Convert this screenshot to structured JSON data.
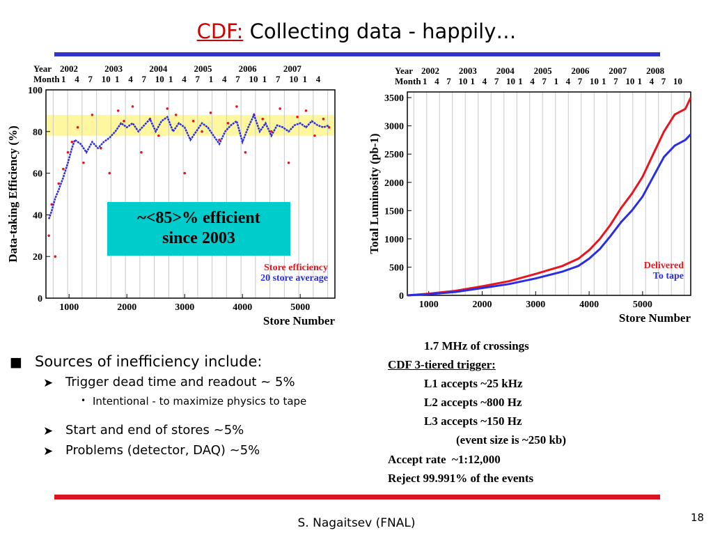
{
  "slide": {
    "title_prefix": "CDF:",
    "title_rest": " Collecting data - happily…",
    "footer": "S. Nagaitsev (FNAL)",
    "page_number": "18",
    "colors": {
      "rule_top": "#2f34c8",
      "rule_bottom": "#d9141e",
      "callout": "#00cccc",
      "title_accent": "#cc0000"
    }
  },
  "callout": {
    "line1": "~<85>% efficient",
    "line2": "since 2003"
  },
  "bullets": {
    "main": "Sources of inefficiency include:",
    "sub1": "Trigger dead time and readout ~ 5%",
    "sub1_detail": "Intentional - to maximize physics to tape",
    "sub2": "Start and end of stores ~5%",
    "sub3": "Problems (detector, DAQ) ~5%"
  },
  "notes": {
    "line1": "1.7 MHz of crossings",
    "line2": "CDF 3-tiered trigger:",
    "line3": "L1 accepts ~25 kHz",
    "line4": "L2 accepts ~800 Hz",
    "line5": "L3 accepts ~150 Hz",
    "line6": "(event size is ~250 kb)",
    "line7": "Accept rate  ~1:12,000",
    "line8": "Reject 99.991% of the events"
  },
  "chart_data": [
    {
      "type": "scatter",
      "xlabel": "Store Number",
      "ylabel": "Data-taking Efficiency (%)",
      "xlim": [
        600,
        5600
      ],
      "ylim": [
        0,
        100
      ],
      "x_ticks": [
        1000,
        2000,
        3000,
        4000,
        5000
      ],
      "y_ticks": [
        0,
        20,
        40,
        60,
        80,
        100
      ],
      "top_row_year_label": "Year",
      "top_row_month_label": "Month",
      "year_labels": [
        "2002",
        "2003",
        "2004",
        "2005",
        "2006",
        "2007"
      ],
      "month_labels": [
        "1",
        "4",
        "7",
        "10",
        "1",
        "4",
        "7",
        "10",
        "1",
        "4",
        "7",
        "1",
        "4",
        "7",
        "10",
        "1",
        "7",
        "10",
        "1",
        "4"
      ],
      "legend": [
        "Store efficiency",
        "20 store average"
      ],
      "band_range": [
        78,
        88
      ],
      "series": [
        {
          "name": "Store efficiency",
          "color": "#e8141e",
          "x": [
            650,
            700,
            760,
            820,
            900,
            980,
            1050,
            1150,
            1250,
            1400,
            1550,
            1700,
            1850,
            1950,
            2100,
            2250,
            2400,
            2550,
            2700,
            2850,
            3000,
            3150,
            3300,
            3450,
            3600,
            3750,
            3900,
            4050,
            4200,
            4350,
            4500,
            4650,
            4800,
            4950,
            5100,
            5250,
            5400,
            5500
          ],
          "y": [
            30,
            45,
            20,
            55,
            62,
            70,
            75,
            82,
            65,
            88,
            72,
            60,
            90,
            85,
            92,
            70,
            86,
            78,
            91,
            88,
            60,
            85,
            80,
            89,
            76,
            84,
            92,
            70,
            88,
            86,
            80,
            91,
            65,
            87,
            90,
            78,
            86,
            82
          ]
        },
        {
          "name": "20 store average",
          "color": "#2a2ee0",
          "x": [
            650,
            700,
            760,
            820,
            900,
            980,
            1050,
            1100,
            1200,
            1300,
            1400,
            1500,
            1600,
            1700,
            1800,
            1900,
            2000,
            2100,
            2200,
            2300,
            2400,
            2500,
            2600,
            2700,
            2800,
            2900,
            3000,
            3100,
            3200,
            3300,
            3400,
            3500,
            3600,
            3700,
            3800,
            3900,
            4000,
            4100,
            4200,
            4300,
            4400,
            4500,
            4600,
            4700,
            4800,
            4900,
            5000,
            5100,
            5200,
            5300,
            5400,
            5500
          ],
          "y": [
            38,
            42,
            48,
            52,
            58,
            65,
            72,
            76,
            74,
            70,
            75,
            72,
            75,
            77,
            80,
            84,
            82,
            84,
            80,
            83,
            86,
            80,
            85,
            87,
            80,
            84,
            82,
            76,
            80,
            84,
            82,
            78,
            74,
            80,
            83,
            85,
            75,
            82,
            88,
            80,
            84,
            78,
            83,
            82,
            80,
            83,
            84,
            82,
            85,
            83,
            82,
            83
          ]
        }
      ]
    },
    {
      "type": "line",
      "xlabel": "Store Number",
      "ylabel": "Total Luminosity (pb-1)",
      "xlim": [
        600,
        5900
      ],
      "ylim": [
        0,
        3600
      ],
      "x_ticks": [
        1000,
        2000,
        3000,
        4000,
        5000
      ],
      "y_ticks": [
        0,
        500,
        1000,
        1500,
        2000,
        2500,
        3000,
        3500
      ],
      "top_row_year_label": "Year",
      "top_row_month_label": "Month",
      "year_labels": [
        "2002",
        "2003",
        "2004",
        "2005",
        "2006",
        "2007",
        "2008"
      ],
      "month_labels": [
        "1",
        "4",
        "7",
        "10",
        "1",
        "4",
        "7",
        "10",
        "1",
        "4",
        "7",
        "1",
        "4",
        "7",
        "10",
        "1",
        "7",
        "10",
        "1",
        "4",
        "7",
        "10"
      ],
      "legend": [
        "Delivered",
        "To tape"
      ],
      "series": [
        {
          "name": "Delivered",
          "color": "#e8141e",
          "x": [
            600,
            1000,
            1500,
            2000,
            2500,
            3000,
            3500,
            3800,
            4000,
            4200,
            4400,
            4600,
            4800,
            5000,
            5200,
            5400,
            5600,
            5800,
            5900
          ],
          "y": [
            0,
            30,
            80,
            160,
            250,
            380,
            520,
            650,
            800,
            1000,
            1250,
            1550,
            1800,
            2100,
            2500,
            2900,
            3200,
            3300,
            3500
          ]
        },
        {
          "name": "To tape",
          "color": "#2a2ee0",
          "x": [
            600,
            1000,
            1500,
            2000,
            2500,
            3000,
            3500,
            3800,
            4000,
            4200,
            4400,
            4600,
            4800,
            5000,
            5200,
            5400,
            5600,
            5800,
            5900
          ],
          "y": [
            0,
            20,
            60,
            130,
            200,
            300,
            420,
            520,
            650,
            820,
            1050,
            1300,
            1500,
            1750,
            2100,
            2450,
            2650,
            2750,
            2850
          ]
        }
      ]
    }
  ]
}
